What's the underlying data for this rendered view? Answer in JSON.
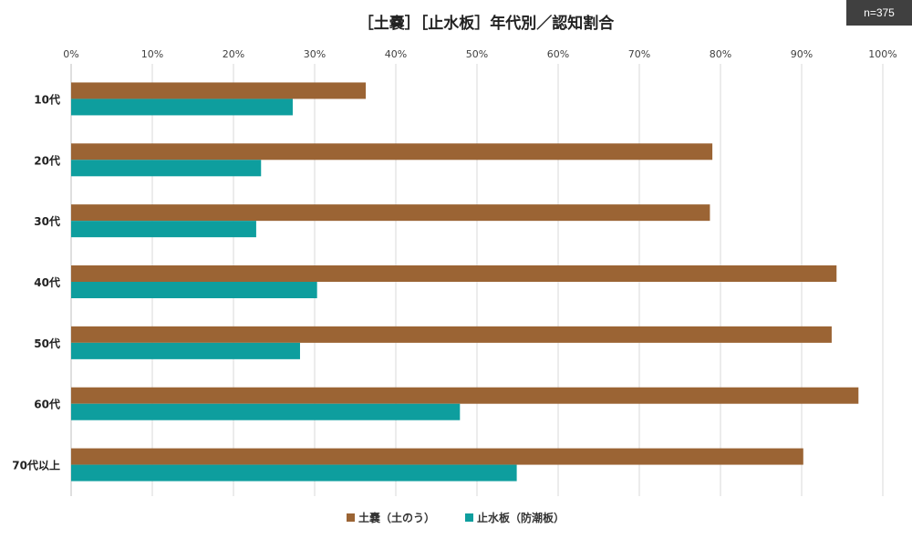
{
  "sample_badge": "n=375",
  "chart_data": {
    "type": "bar",
    "orientation": "horizontal",
    "title": "［土嚢］［止水板］年代別／認知割合",
    "categories": [
      "10代",
      "20代",
      "30代",
      "40代",
      "50代",
      "60代",
      "70代以上"
    ],
    "series": [
      {
        "name": "土嚢（土のう）",
        "color": "#9B6434",
        "values": [
          36.3,
          79.0,
          78.7,
          94.3,
          93.7,
          97.0,
          90.2
        ]
      },
      {
        "name": "止水板（防潮板）",
        "color": "#0E9E9E",
        "values": [
          27.3,
          23.4,
          22.8,
          30.3,
          28.2,
          47.9,
          54.9
        ]
      }
    ],
    "xlim": [
      0,
      100
    ],
    "x_ticks": [
      "0%",
      "10%",
      "20%",
      "30%",
      "40%",
      "50%",
      "60%",
      "70%",
      "80%",
      "90%",
      "100%"
    ],
    "grid": true,
    "legend_position": "bottom",
    "gridline_color": "#d9d9d9"
  }
}
